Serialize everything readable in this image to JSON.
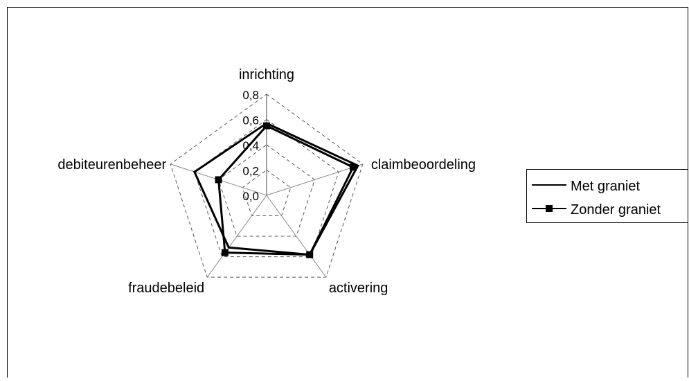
{
  "chart_data": {
    "type": "radar",
    "title": "",
    "categories": [
      "inrichting",
      "claimbeoordeling",
      "activering",
      "fraudebeleid",
      "debiteurenbeheer"
    ],
    "rlim": [
      0,
      0.8
    ],
    "ticks": [
      0.0,
      0.2,
      0.4,
      0.6,
      0.8
    ],
    "tick_labels": [
      "0,0",
      "0,2",
      "0,4",
      "0,6",
      "0,8"
    ],
    "grid": true,
    "legend_position": "right",
    "series": [
      {
        "name": "Met graniet",
        "marker": "none",
        "color": "#000000",
        "values": [
          0.57,
          0.76,
          0.58,
          0.51,
          0.6
        ]
      },
      {
        "name": "Zonder graniet",
        "marker": "square",
        "color": "#000000",
        "values": [
          0.55,
          0.72,
          0.58,
          0.56,
          0.4
        ]
      }
    ]
  }
}
